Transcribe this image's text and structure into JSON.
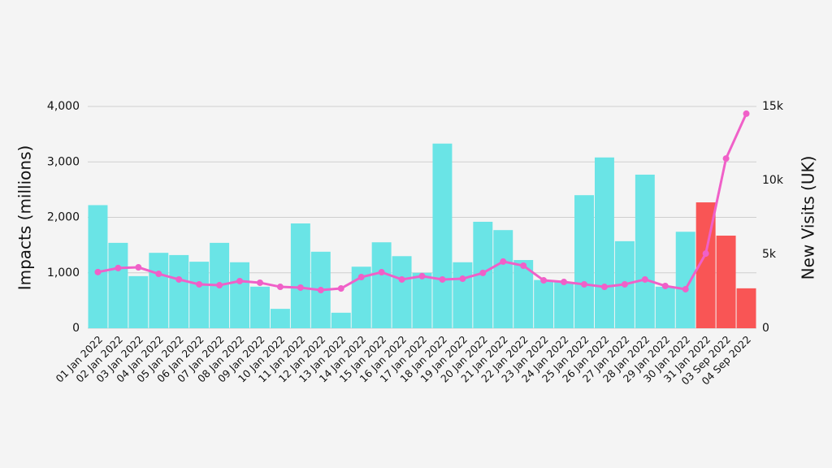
{
  "chart_data": {
    "type": "bar-line",
    "categories": [
      "01 Jan 2022",
      "02 Jan 2022",
      "03 Jan 2022",
      "04 Jan 2022",
      "05 Jan 2022",
      "06 Jan 2022",
      "07 Jan 2022",
      "08 Jan 2022",
      "09 Jan 2022",
      "10 Jan 2022",
      "11 Jan 2022",
      "12 Jan 2022",
      "13 Jan 2022",
      "14 Jan 2022",
      "15 Jan 2022",
      "16 Jan 2022",
      "17 Jan 2022",
      "18 Jan 2022",
      "19 Jan 2022",
      "20 Jan 2022",
      "21 Jan 2022",
      "22 Jan 2022",
      "23 Jan 2022",
      "24 Jan 2022",
      "25 Jan 2022",
      "26 Jan 2022",
      "27 Jan 2022",
      "28 Jan 2022",
      "29 Jan 2022",
      "30 Jan 2022",
      "31 Jan 2022",
      "03 Sep 2022",
      "04 Sep 2022"
    ],
    "series": [
      {
        "type": "bar",
        "axis": "y",
        "color": "#6ae4e6",
        "colors": [
          "#6ae4e6",
          "#6ae4e6",
          "#6ae4e6",
          "#6ae4e6",
          "#6ae4e6",
          "#6ae4e6",
          "#6ae4e6",
          "#6ae4e6",
          "#6ae4e6",
          "#6ae4e6",
          "#6ae4e6",
          "#6ae4e6",
          "#6ae4e6",
          "#6ae4e6",
          "#6ae4e6",
          "#6ae4e6",
          "#6ae4e6",
          "#6ae4e6",
          "#6ae4e6",
          "#6ae4e6",
          "#6ae4e6",
          "#6ae4e6",
          "#6ae4e6",
          "#6ae4e6",
          "#6ae4e6",
          "#6ae4e6",
          "#6ae4e6",
          "#6ae4e6",
          "#6ae4e6",
          "#6ae4e6",
          "#f95555",
          "#f95555",
          "#f95555"
        ],
        "values": [
          2220,
          1540,
          940,
          1360,
          1320,
          1200,
          1540,
          1190,
          750,
          350,
          1890,
          1380,
          280,
          1110,
          1550,
          1300,
          1000,
          3330,
          1190,
          1920,
          1770,
          1230,
          870,
          830,
          2400,
          3080,
          1570,
          2770,
          750,
          1740,
          2270,
          1670,
          720
        ]
      },
      {
        "type": "line",
        "axis": "y2",
        "color": "#f060c8",
        "values": [
          3800,
          4070,
          4120,
          3680,
          3300,
          2970,
          2910,
          3190,
          3080,
          2800,
          2750,
          2580,
          2690,
          3460,
          3790,
          3300,
          3520,
          3300,
          3350,
          3740,
          4510,
          4230,
          3240,
          3130,
          2970,
          2800,
          2970,
          3300,
          2860,
          2640,
          5050,
          11480,
          14510
        ]
      }
    ],
    "y_label": "Impacts (millions)",
    "y2_label": "New Visits (UK)",
    "ylim": [
      0,
      4000
    ],
    "yticks": [
      0,
      {
        "value": 1000,
        "label": "1,000"
      },
      {
        "value": 2000,
        "label": "2,000"
      },
      {
        "value": 3000,
        "label": "3,000"
      },
      {
        "value": 4000,
        "label": "4,000"
      }
    ],
    "y2lim": [
      0,
      15000
    ],
    "y2ticks": [
      0,
      {
        "value": 5000,
        "label": "5k"
      },
      {
        "value": 10000,
        "label": "10k"
      },
      {
        "value": 15000,
        "label": "15k"
      }
    ],
    "grid": true
  }
}
